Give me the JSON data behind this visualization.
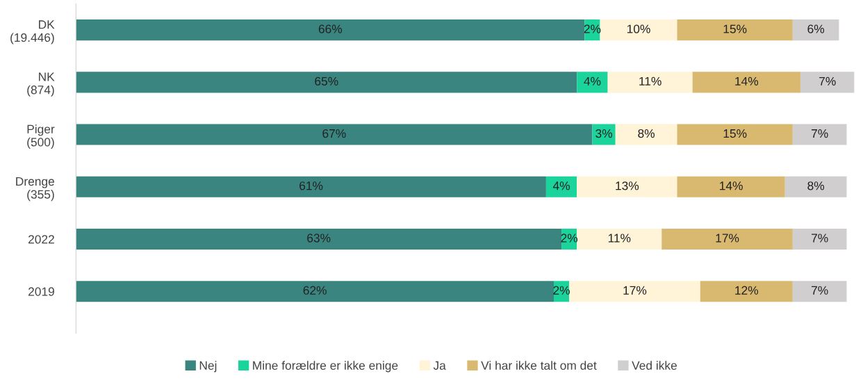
{
  "chart_data": {
    "type": "bar",
    "orientation": "horizontal",
    "stacked": true,
    "legend": "bottom",
    "grid": false,
    "tick_labels": "y",
    "categories": [
      "DK\n(19.446)",
      "NK\n(874)",
      "Piger\n(500)",
      "Drenge\n(355)",
      "2022",
      "2019"
    ],
    "series": [
      {
        "name": "Nej",
        "color": "#3a8580",
        "values": [
          66,
          65,
          67,
          61,
          63,
          62
        ],
        "value_labels": [
          "66%",
          "65%",
          "67%",
          "61%",
          "63%",
          "62%"
        ]
      },
      {
        "name": "Mine forældre er ikke enige",
        "color": "#1ad49c",
        "values": [
          2,
          4,
          3,
          4,
          2,
          2
        ],
        "value_labels": [
          "2%",
          "4%",
          "3%",
          "4%",
          "2%",
          "2%"
        ]
      },
      {
        "name": "Ja",
        "color": "#fff4d8",
        "values": [
          10,
          11,
          8,
          13,
          11,
          17
        ],
        "value_labels": [
          "10%",
          "11%",
          "8%",
          "13%",
          "11%",
          "17%"
        ]
      },
      {
        "name": "Vi har ikke talt om det",
        "color": "#d9b970",
        "values": [
          15,
          14,
          15,
          14,
          17,
          12
        ],
        "value_labels": [
          "15%",
          "14%",
          "15%",
          "14%",
          "17%",
          "12%"
        ]
      },
      {
        "name": "Ved ikke",
        "color": "#d0cecf",
        "values": [
          6,
          7,
          7,
          8,
          7,
          7
        ],
        "value_labels": [
          "6%",
          "7%",
          "7%",
          "8%",
          "7%",
          "7%"
        ]
      }
    ]
  }
}
